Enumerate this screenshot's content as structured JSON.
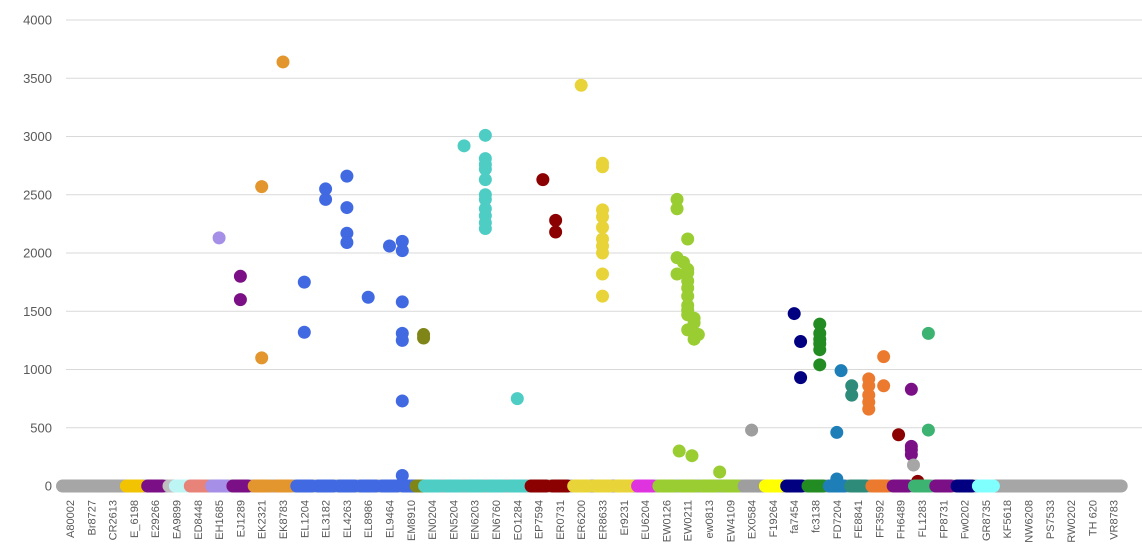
{
  "chart_data": {
    "type": "scatter",
    "title": "",
    "xlabel": "",
    "ylabel": "",
    "ylim": [
      0,
      4000
    ],
    "yticks": [
      0,
      500,
      1000,
      1500,
      2000,
      2500,
      3000,
      3500,
      4000
    ],
    "grid": true,
    "legend": "none",
    "x_tick_labels": [
      "A80002",
      "Br8727",
      "CR2613",
      "E_6198",
      "E29266",
      "EA9899",
      "ED8448",
      "EH1685",
      "EJ1289",
      "EK2321",
      "EK8783",
      "EL1204",
      "EL3182",
      "EL4263",
      "EL8986",
      "EL9464",
      "EM8910",
      "EN0204",
      "EN5204",
      "EN6203",
      "EN6760",
      "EO1284",
      "EP7594",
      "ER0731",
      "ER6200",
      "ER8633",
      "Er9231",
      "EU6204",
      "EW0126",
      "EW0211",
      "ew0813",
      "EW4109",
      "EX0584",
      "F19264",
      "fa7454",
      "fc3138",
      "FD7204",
      "FE8841",
      "FF3592",
      "FH6489",
      "FL1283",
      "FP8731",
      "Fw0202",
      "GR8735",
      "KF5618",
      "NW6208",
      "PS7533",
      "RW0202",
      "TH 620",
      "VR8783"
    ],
    "series": [
      {
        "color": "#a6a6a6",
        "points": [
          [
            0,
            0
          ],
          [
            1,
            0
          ],
          [
            2,
            0
          ],
          [
            44,
            0
          ],
          [
            45,
            0
          ],
          [
            46,
            0
          ],
          [
            47,
            0
          ],
          [
            48,
            0
          ],
          [
            49,
            0
          ]
        ]
      },
      {
        "color": "#f2c300",
        "points": [
          [
            3,
            0
          ]
        ]
      },
      {
        "color": "#7b0f86",
        "points": [
          [
            4,
            0
          ]
        ]
      },
      {
        "color": "#bfbfbf",
        "points": [
          [
            5,
            0
          ]
        ]
      },
      {
        "color": "#bdf5f5",
        "points": [
          [
            5.3,
            0
          ]
        ]
      },
      {
        "color": "#e8837a",
        "points": [
          [
            6,
            0
          ]
        ]
      },
      {
        "color": "#a68fe6",
        "points": [
          [
            7,
            2130
          ],
          [
            7,
            0
          ]
        ]
      },
      {
        "color": "#7b0f86",
        "points": [
          [
            8,
            1800
          ],
          [
            8,
            1600
          ],
          [
            8,
            0
          ]
        ]
      },
      {
        "color": "#e3962e",
        "points": [
          [
            9,
            2570
          ],
          [
            9,
            1100
          ],
          [
            10,
            3640
          ],
          [
            9,
            0
          ],
          [
            10,
            0
          ]
        ]
      },
      {
        "color": "#4169e1",
        "points": [
          [
            11,
            1750
          ],
          [
            11,
            1320
          ],
          [
            12,
            2550
          ],
          [
            12,
            2460
          ],
          [
            13,
            2660
          ],
          [
            13,
            2390
          ],
          [
            13,
            2170
          ],
          [
            13,
            2090
          ],
          [
            14,
            1620
          ],
          [
            15,
            2060
          ],
          [
            15.6,
            2100
          ],
          [
            15.6,
            2020
          ],
          [
            15.6,
            1580
          ],
          [
            15.6,
            1310
          ],
          [
            15.6,
            1250
          ],
          [
            15.6,
            730
          ],
          [
            15.6,
            90
          ],
          [
            11,
            0
          ],
          [
            12,
            0
          ],
          [
            13,
            0
          ],
          [
            14,
            0
          ],
          [
            15,
            0
          ],
          [
            16,
            0
          ]
        ]
      },
      {
        "color": "#7f8517",
        "points": [
          [
            16.6,
            1300
          ],
          [
            16.6,
            1270
          ],
          [
            16.6,
            0
          ]
        ]
      },
      {
        "color": "#4ecdc4",
        "points": [
          [
            18.5,
            2920
          ],
          [
            19.5,
            3010
          ],
          [
            19.5,
            2810
          ],
          [
            19.5,
            2760
          ],
          [
            19.5,
            2720
          ],
          [
            19.5,
            2630
          ],
          [
            19.5,
            2500
          ],
          [
            19.5,
            2460
          ],
          [
            19.5,
            2380
          ],
          [
            19.5,
            2320
          ],
          [
            19.5,
            2260
          ],
          [
            19.5,
            2210
          ],
          [
            21,
            750
          ],
          [
            17,
            0
          ],
          [
            18,
            0
          ],
          [
            19,
            0
          ],
          [
            20,
            0
          ],
          [
            21,
            0
          ]
        ]
      },
      {
        "color": "#8b0000",
        "points": [
          [
            22.2,
            2630
          ],
          [
            22.8,
            2280
          ],
          [
            22.8,
            2180
          ],
          [
            22,
            0
          ],
          [
            23,
            0
          ]
        ]
      },
      {
        "color": "#e8d438",
        "points": [
          [
            24,
            3440
          ],
          [
            25,
            2770
          ],
          [
            25,
            2740
          ],
          [
            25,
            2370
          ],
          [
            25,
            2310
          ],
          [
            25,
            2220
          ],
          [
            25,
            2120
          ],
          [
            25,
            2060
          ],
          [
            25,
            2000
          ],
          [
            25,
            1820
          ],
          [
            25,
            1630
          ],
          [
            24,
            0
          ],
          [
            25,
            0
          ],
          [
            26,
            0
          ]
        ]
      },
      {
        "color": "#e033e0",
        "points": [
          [
            27,
            0
          ]
        ]
      },
      {
        "color": "#9acd32",
        "points": [
          [
            28.5,
            2460
          ],
          [
            28.5,
            2380
          ],
          [
            29,
            2120
          ],
          [
            28.5,
            1960
          ],
          [
            28.8,
            1920
          ],
          [
            29,
            1860
          ],
          [
            29,
            1830
          ],
          [
            28.5,
            1820
          ],
          [
            29,
            1760
          ],
          [
            29,
            1700
          ],
          [
            29,
            1630
          ],
          [
            29,
            1550
          ],
          [
            29,
            1510
          ],
          [
            29,
            1470
          ],
          [
            29.3,
            1440
          ],
          [
            29.3,
            1400
          ],
          [
            29,
            1340
          ],
          [
            29.5,
            1300
          ],
          [
            29.3,
            1260
          ],
          [
            28.6,
            300
          ],
          [
            29.2,
            260
          ],
          [
            30.5,
            120
          ],
          [
            28,
            0
          ],
          [
            29,
            0
          ],
          [
            30,
            0
          ],
          [
            31,
            0
          ]
        ]
      },
      {
        "color": "#9e9e9e",
        "points": [
          [
            32,
            480
          ],
          [
            32,
            0
          ]
        ]
      },
      {
        "color": "#ffff00",
        "points": [
          [
            33,
            0
          ]
        ]
      },
      {
        "color": "#000080",
        "points": [
          [
            34,
            1480
          ],
          [
            34.3,
            1240
          ],
          [
            34.3,
            930
          ],
          [
            34,
            0
          ]
        ]
      },
      {
        "color": "#228b22",
        "points": [
          [
            35.2,
            1390
          ],
          [
            35.2,
            1310
          ],
          [
            35.2,
            1260
          ],
          [
            35.2,
            1220
          ],
          [
            35.2,
            1170
          ],
          [
            35.2,
            1040
          ],
          [
            35,
            0
          ]
        ]
      },
      {
        "color": "#1e7fb8",
        "points": [
          [
            36.2,
            990
          ],
          [
            36,
            460
          ],
          [
            36,
            60
          ],
          [
            36,
            0
          ]
        ]
      },
      {
        "color": "#2e8b79",
        "points": [
          [
            36.7,
            860
          ],
          [
            36.7,
            780
          ],
          [
            37,
            0
          ]
        ]
      },
      {
        "color": "#ec7a2e",
        "points": [
          [
            37.5,
            920
          ],
          [
            37.5,
            860
          ],
          [
            37.5,
            780
          ],
          [
            37.5,
            720
          ],
          [
            37.5,
            660
          ],
          [
            38.2,
            1110
          ],
          [
            38.2,
            860
          ],
          [
            38,
            0
          ]
        ]
      },
      {
        "color": "#7b0f86",
        "points": [
          [
            39.5,
            830
          ],
          [
            39.5,
            340
          ],
          [
            39.5,
            310
          ],
          [
            39.5,
            270
          ],
          [
            39,
            0
          ]
        ]
      },
      {
        "color": "#8b0000",
        "points": [
          [
            38.9,
            440
          ],
          [
            39.8,
            40
          ]
        ]
      },
      {
        "color": "#a6a6a6",
        "points": [
          [
            39.6,
            180
          ]
        ]
      },
      {
        "color": "#3cb371",
        "points": [
          [
            40.3,
            1310
          ],
          [
            40.3,
            480
          ],
          [
            40,
            0
          ]
        ]
      },
      {
        "color": "#7b0f86",
        "points": [
          [
            41,
            0
          ]
        ]
      },
      {
        "color": "#000080",
        "points": [
          [
            42,
            0
          ]
        ]
      },
      {
        "color": "#80ffff",
        "points": [
          [
            43,
            0
          ]
        ]
      }
    ]
  }
}
